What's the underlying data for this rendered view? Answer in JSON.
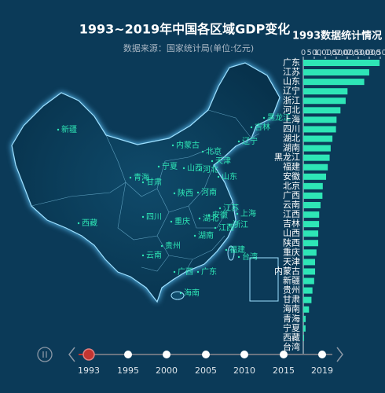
{
  "title": "1993~2019年中国各区域GDP变化",
  "subtitle": "数据来源：国家统计局(单位:亿元)",
  "chart_data": [
    {
      "type": "map",
      "regions": [
        "新疆",
        "西藏",
        "青海",
        "甘肃",
        "宁夏",
        "内蒙古",
        "黑龙江",
        "吉林",
        "辽宁",
        "北京",
        "天津",
        "河北",
        "山西",
        "陕西",
        "河南",
        "山东",
        "江苏",
        "安徽",
        "上海",
        "浙江",
        "湖北",
        "四川",
        "重庆",
        "湖南",
        "江西",
        "福建",
        "台湾",
        "贵州",
        "云南",
        "广西",
        "广东",
        "海南"
      ]
    },
    {
      "type": "bar",
      "orientation": "horizontal",
      "title": "1993数据统计情况",
      "color": "#2ee6b6",
      "categories": [
        "广东",
        "江苏",
        "山东",
        "辽宁",
        "浙江",
        "河北",
        "上海",
        "四川",
        "湖北",
        "湖南",
        "黑龙江",
        "福建",
        "安徽",
        "北京",
        "广西",
        "云南",
        "江西",
        "吉林",
        "山西",
        "陕西",
        "重庆",
        "天津",
        "内蒙古",
        "新疆",
        "贵州",
        "甘肃",
        "海南",
        "青海",
        "宁夏",
        "西藏",
        "台湾"
      ],
      "values": [
        3469,
        2998,
        2770,
        2011,
        1926,
        1690,
        1512,
        1487,
        1325,
        1245,
        1198,
        1114,
        1037,
        886,
        871,
        784,
        723,
        718,
        680,
        678,
        600,
        536,
        537,
        495,
        417,
        372,
        260,
        109,
        104,
        37,
        0
      ],
      "xlim": [
        0,
        3500
      ],
      "xticks": [
        0,
        500,
        {
          "value": 1000,
          "label": "1,000"
        },
        {
          "value": 1500,
          "label": "1,500"
        },
        {
          "value": 2000,
          "label": "2,000"
        },
        {
          "value": 2500,
          "label": "2,500"
        },
        {
          "value": 3000,
          "label": "3,000"
        },
        {
          "value": 3500,
          "label": "3,500"
        }
      ]
    }
  ],
  "timeline": {
    "years": [
      "1993",
      "1995",
      "2000",
      "2005",
      "2010",
      "2015",
      "2019"
    ]
  }
}
